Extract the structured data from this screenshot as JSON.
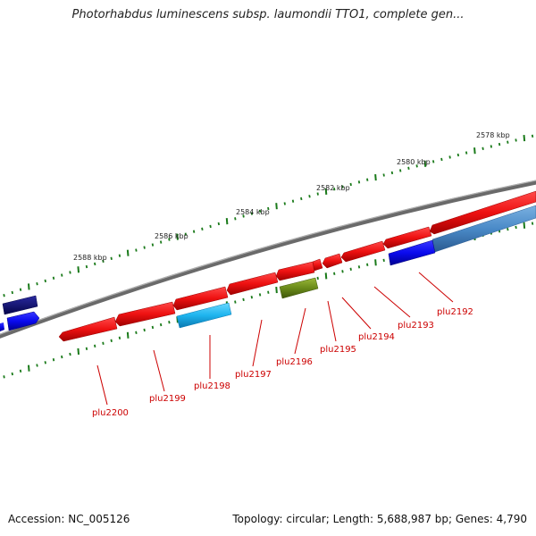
{
  "title": "Photorhabdus luminescens subsp. laumondii TTO1, complete gen...",
  "accession_text": "Accession: NC_005126",
  "summary_text": "Topology: circular; Length: 5,688,987 bp; Genes: 4,790",
  "kbp_labels": [
    "2578 kbp",
    "2580 kbp",
    "2582 kbp",
    "2584 kbp",
    "2586 kbp",
    "2588 kbp"
  ],
  "gene_labels": [
    "plu2192",
    "plu2193",
    "plu2194",
    "plu2195",
    "plu2196",
    "plu2197",
    "plu2198",
    "plu2199",
    "plu2200"
  ],
  "colors": {
    "backbone": "#7a7a7a",
    "tick": "#1a7a1a",
    "gene_red": "#ee1111",
    "gene_blue": "#0a0aee",
    "gene_navy": "#0a0a7a",
    "gene_cyan": "#1eb4ee",
    "gene_olive": "#6a8a1a",
    "gene_steel": "#4a8ac8",
    "label_red": "#cc0000"
  }
}
